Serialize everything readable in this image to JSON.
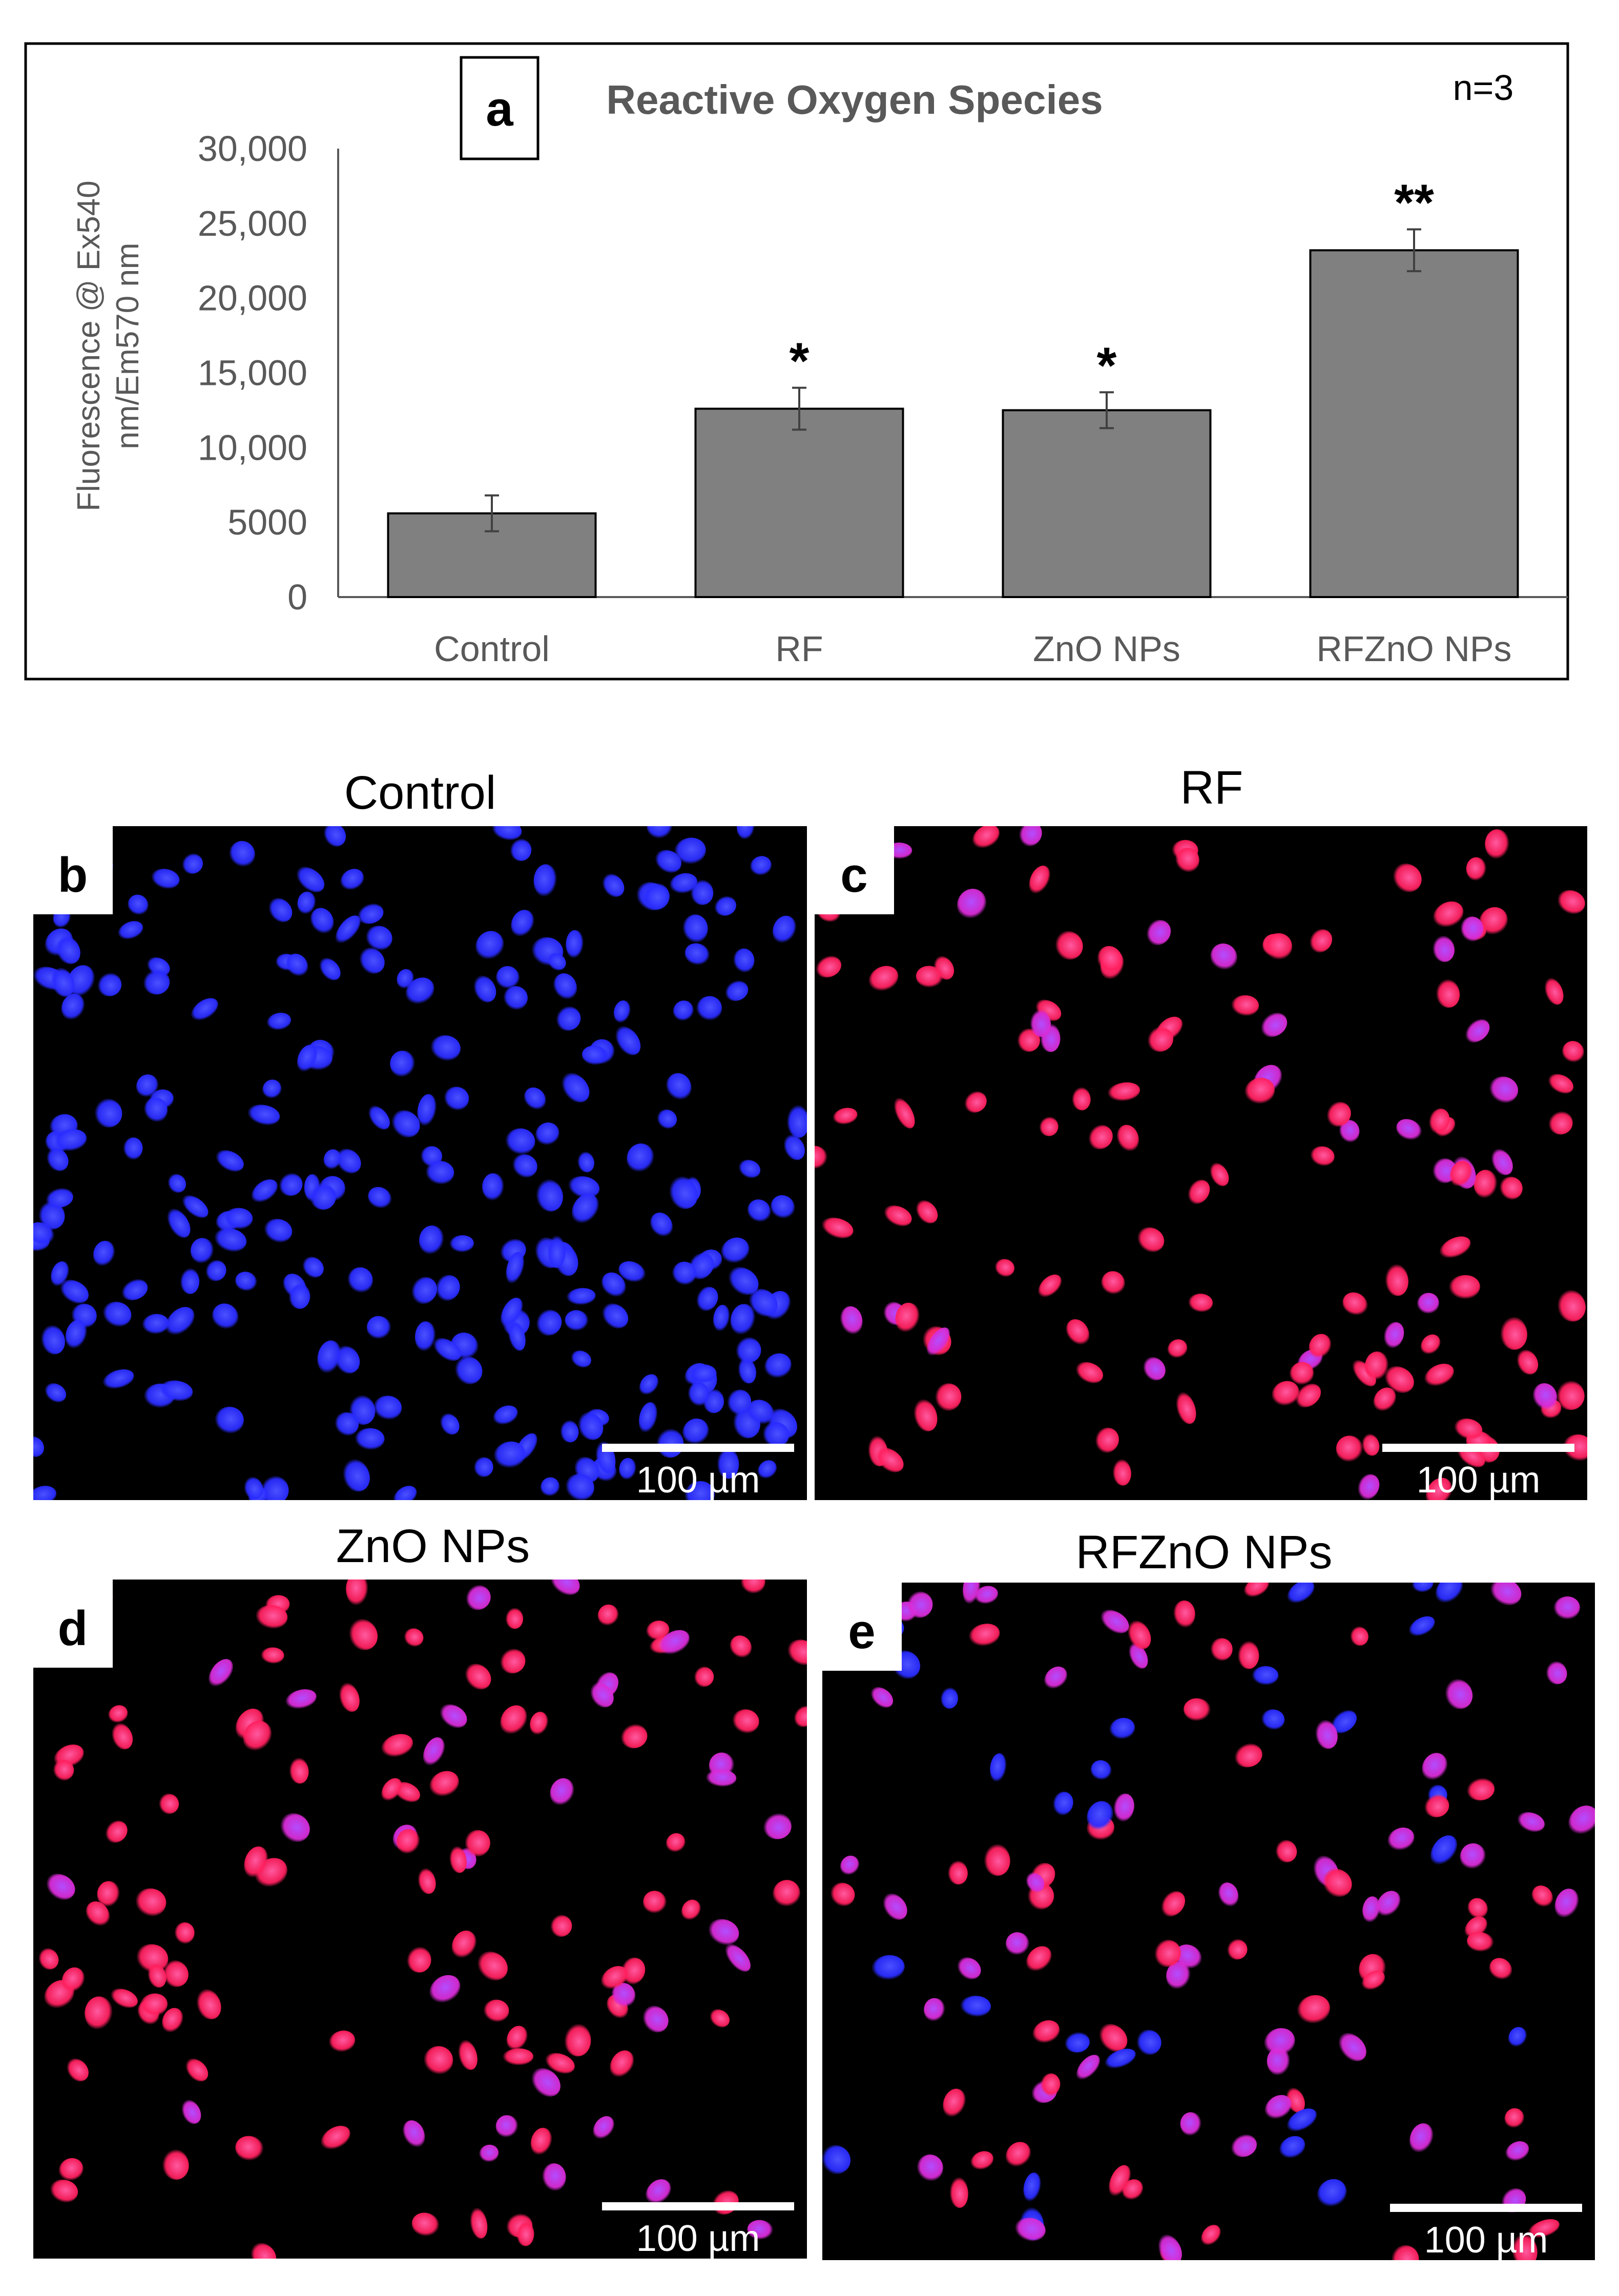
{
  "chart_data": {
    "type": "bar",
    "panel_letter": "a",
    "title": "Reactive Oxygen Species",
    "annotation": "n=3",
    "ylabel_line1": "Fluorescence @ Ex540",
    "ylabel_line2": "nm/Em570 nm",
    "ylim": [
      0,
      30000
    ],
    "yticks": [
      "0",
      "5000",
      "10,000",
      "15,000",
      "20,000",
      "25,000",
      "30,000"
    ],
    "categories": [
      "Control",
      "RF",
      "ZnO NPs",
      "RFZnO NPs"
    ],
    "values": [
      5600,
      12600,
      12500,
      23200
    ],
    "errors": [
      1200,
      1400,
      1200,
      1400
    ],
    "significance": [
      "",
      "*",
      "*",
      "**"
    ],
    "bar_color": "#808080"
  },
  "micrographs": [
    {
      "letter": "b",
      "title": "Control",
      "scale": "100 µm",
      "stain": "blue"
    },
    {
      "letter": "c",
      "title": "RF",
      "scale": "100 µm",
      "stain": "red"
    },
    {
      "letter": "d",
      "title": "ZnO NPs",
      "scale": "100 µm",
      "stain": "red"
    },
    {
      "letter": "e",
      "title": "RFZnO NPs",
      "scale": "100 µm",
      "stain": "mixed"
    }
  ],
  "colors": {
    "nucleus_blue": "#2a2cff",
    "ros_red": "#ff1f5e",
    "ros_magenta": "#d92bd6",
    "background": "#000000"
  }
}
